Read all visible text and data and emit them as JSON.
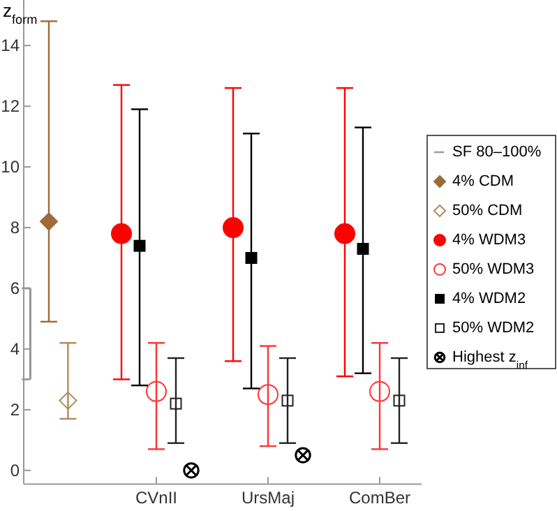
{
  "chart_data": {
    "type": "scatter",
    "ylabel": "z$_{form}$",
    "categories": [
      null,
      "CVnII",
      "UrsMaj",
      "ComBer"
    ],
    "ylim": [
      -0.45,
      15.5
    ],
    "yticks": [
      0,
      2,
      4,
      6,
      8,
      10,
      12,
      14
    ],
    "grid": false,
    "legend": "right",
    "series": [
      {
        "name": "SF 80–100%",
        "type": "bar",
        "color": "#999999",
        "base": [
          3.0,
          null,
          null,
          null
        ],
        "values": [
          3.0,
          null,
          null,
          null
        ]
      },
      {
        "name": "4% CDM",
        "color": "#9c6b3c",
        "marker": "diamond",
        "values": [
          8.2,
          null,
          null,
          null
        ],
        "errors": [
          [
            4.9,
            14.8
          ],
          null,
          null,
          null
        ]
      },
      {
        "name": "50% CDM",
        "color": "#b08a5a",
        "marker": "diamond",
        "values": [
          2.3,
          null,
          null,
          null
        ],
        "errors": [
          [
            1.7,
            4.2
          ],
          null,
          null,
          null
        ]
      },
      {
        "name": "4% WDM3",
        "color": "#ff0000",
        "marker": "circle",
        "values": [
          null,
          7.8,
          8.0,
          7.8
        ],
        "errors": [
          null,
          [
            3.0,
            12.7
          ],
          [
            3.6,
            12.6
          ],
          [
            3.1,
            12.6
          ]
        ]
      },
      {
        "name": "50% WDM3",
        "color": "#ff3333",
        "marker": "circle",
        "values": [
          null,
          2.6,
          2.5,
          2.6
        ],
        "errors": [
          null,
          [
            0.7,
            4.2
          ],
          [
            0.8,
            4.1
          ],
          [
            0.7,
            4.2
          ]
        ]
      },
      {
        "name": "4% WDM2",
        "color": "#000000",
        "marker": "square",
        "values": [
          null,
          7.4,
          7.0,
          7.3
        ],
        "errors": [
          null,
          [
            2.8,
            11.9
          ],
          [
            2.7,
            11.1
          ],
          [
            3.2,
            11.3
          ]
        ]
      },
      {
        "name": "50% WDM2",
        "color": "#222222",
        "marker": "square",
        "values": [
          null,
          2.2,
          2.3,
          2.3
        ],
        "errors": [
          null,
          [
            0.9,
            3.7
          ],
          [
            0.9,
            3.7
          ],
          [
            0.9,
            3.7
          ]
        ]
      },
      {
        "name": "Highest z$_{inf}$",
        "color": "#000000",
        "marker": "circle",
        "values": [
          null,
          0.0,
          0.5,
          null
        ]
      }
    ]
  }
}
